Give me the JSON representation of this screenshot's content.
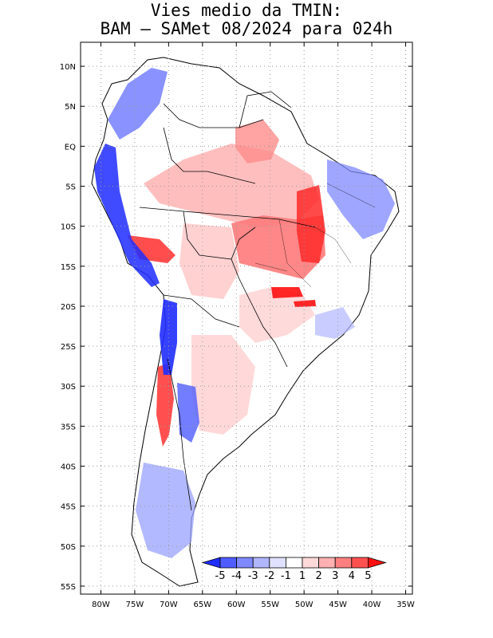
{
  "title": {
    "line1": "Vies medio da TMIN:",
    "line2": "BAM – SAMet 08/2024  para 024h"
  },
  "map": {
    "region": "South America",
    "lon_range": [
      -83,
      -34
    ],
    "lat_range": [
      -56,
      13
    ],
    "lat_labels": [
      "10N",
      "5N",
      "EQ",
      "5S",
      "10S",
      "15S",
      "20S",
      "25S",
      "30S",
      "35S",
      "40S",
      "45S",
      "50S",
      "55S"
    ],
    "lat_values": [
      10,
      5,
      0,
      -5,
      -10,
      -15,
      -20,
      -25,
      -30,
      -35,
      -40,
      -45,
      -50,
      -55
    ],
    "lon_labels": [
      "80W",
      "75W",
      "70W",
      "65W",
      "60W",
      "55W",
      "50W",
      "45W",
      "40W",
      "35W"
    ],
    "lon_values": [
      -80,
      -75,
      -70,
      -65,
      -60,
      -55,
      -50,
      -45,
      -40,
      -35
    ],
    "gridlines": "dotted"
  },
  "colorbar": {
    "labels": [
      "-5",
      "-4",
      "-3",
      "-2",
      "-1",
      "1",
      "2",
      "3",
      "4",
      "5"
    ],
    "colors": [
      "#1f2cff",
      "#4f5cff",
      "#7f88ff",
      "#b0b6ff",
      "#dfe1ff",
      "#ffffff",
      "#ffd9d9",
      "#ffb0b0",
      "#ff8080",
      "#ff5050",
      "#ff1010"
    ],
    "arrow_low_color": "#1f2cff",
    "arrow_high_color": "#ff1010"
  },
  "colors": {
    "land_outline": "#000000",
    "frame": "#000000",
    "grid": "#9a9a9a"
  }
}
